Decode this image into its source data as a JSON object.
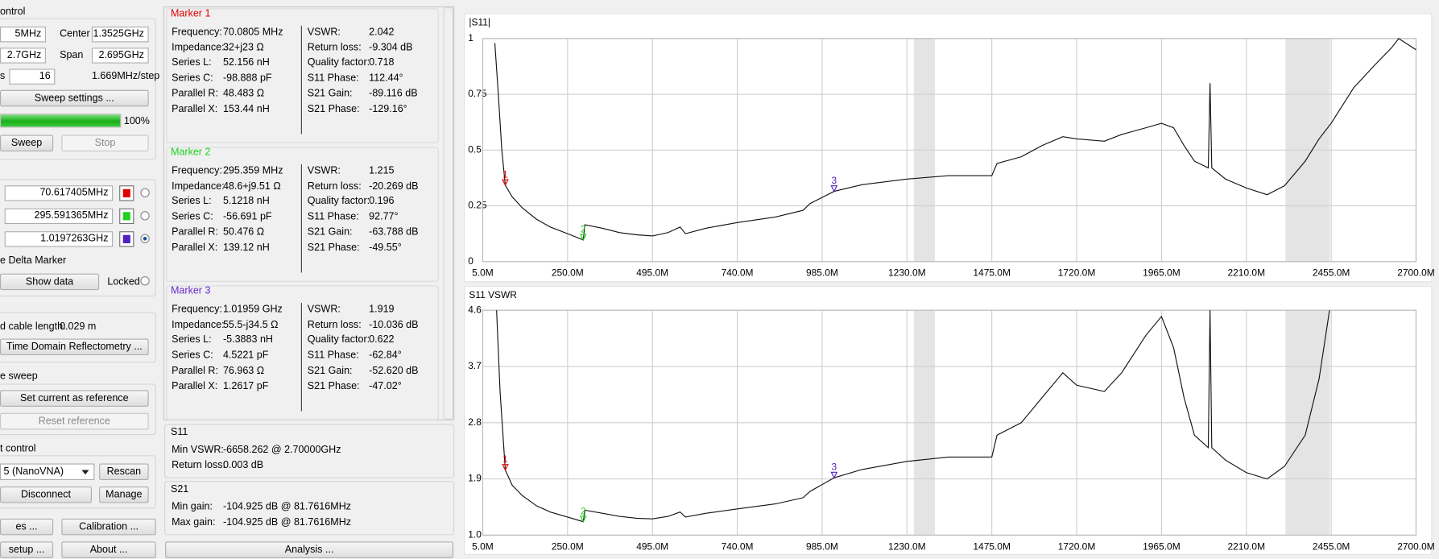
{
  "sweep_control": {
    "title": "ontrol",
    "start": "5MHz",
    "center_label": "Center",
    "center": "1.3525GHz",
    "stop": "2.7GHz",
    "span_label": "Span",
    "span": "2.695GHz",
    "segments_label": "s",
    "segments": "16",
    "step": "1.669MHz/step",
    "sweep_settings": "Sweep settings ...",
    "progress": 100,
    "progress_label": "100%",
    "sweep": "Sweep",
    "stop_button": "Stop"
  },
  "marker_control": {
    "markers": [
      {
        "value": "70.617405MHz",
        "color": "#e00000"
      },
      {
        "value": "295.591365MHz",
        "color": "#20d020"
      },
      {
        "value": "1.0197263GHz",
        "color": "#5020c0"
      }
    ],
    "delta": "e Delta Marker",
    "show_data": "Show data",
    "locked": "Locked"
  },
  "tdr": {
    "cable_length_label": "d cable length:",
    "cable_length": "0.029 m",
    "button": "Time Domain Reflectometry ..."
  },
  "reference": {
    "title": "e sweep",
    "set": "Set current as reference",
    "reset": "Reset reference"
  },
  "device": {
    "title": "t control",
    "device": "5 (NanoVNA)",
    "rescan": "Rescan",
    "disconnect": "Disconnect",
    "manage": "Manage"
  },
  "buttons": {
    "files": "es ...",
    "calibration": "Calibration ...",
    "setup": "setup ...",
    "about": "About ..."
  },
  "markers_info": [
    {
      "title": "Marker 1",
      "color": "#e00000",
      "left": [
        [
          "Frequency:",
          "70.0805 MHz"
        ],
        [
          "Impedance:",
          "32+j23 Ω"
        ],
        [
          "Series L:",
          "52.156 nH"
        ],
        [
          "Series C:",
          "-98.888 pF"
        ],
        [
          "Parallel R:",
          "48.483 Ω"
        ],
        [
          "Parallel X:",
          "153.44 nH"
        ]
      ],
      "right": [
        [
          "VSWR:",
          "2.042"
        ],
        [
          "Return loss:",
          "-9.304 dB"
        ],
        [
          "Quality factor:",
          "0.718"
        ],
        [
          "S11 Phase:",
          "112.44°"
        ],
        [
          "S21 Gain:",
          "-89.116 dB"
        ],
        [
          "S21 Phase:",
          "-129.16°"
        ]
      ]
    },
    {
      "title": "Marker 2",
      "color": "#20d020",
      "left": [
        [
          "Frequency:",
          "295.359 MHz"
        ],
        [
          "Impedance:",
          "48.6+j9.51 Ω"
        ],
        [
          "Series L:",
          "5.1218 nH"
        ],
        [
          "Series C:",
          "-56.691 pF"
        ],
        [
          "Parallel R:",
          "50.476 Ω"
        ],
        [
          "Parallel X:",
          "139.12 nH"
        ]
      ],
      "right": [
        [
          "VSWR:",
          "1.215"
        ],
        [
          "Return loss:",
          "-20.269 dB"
        ],
        [
          "Quality factor:",
          "0.196"
        ],
        [
          "S11 Phase:",
          "92.77°"
        ],
        [
          "S21 Gain:",
          "-63.788 dB"
        ],
        [
          "S21 Phase:",
          "-49.55°"
        ]
      ]
    },
    {
      "title": "Marker 3",
      "color": "#6a2ad0",
      "left": [
        [
          "Frequency:",
          "1.01959 GHz"
        ],
        [
          "Impedance:",
          "55.5-j34.5 Ω"
        ],
        [
          "Series L:",
          "-5.3883 nH"
        ],
        [
          "Series C:",
          "4.5221 pF"
        ],
        [
          "Parallel R:",
          "76.963 Ω"
        ],
        [
          "Parallel X:",
          "1.2617 pF"
        ]
      ],
      "right": [
        [
          "VSWR:",
          "1.919"
        ],
        [
          "Return loss:",
          "-10.036 dB"
        ],
        [
          "Quality factor:",
          "0.622"
        ],
        [
          "S11 Phase:",
          "-62.84°"
        ],
        [
          "S21 Gain:",
          "-52.620 dB"
        ],
        [
          "S21 Phase:",
          "-47.02°"
        ]
      ]
    }
  ],
  "s11": {
    "title": "S11",
    "rows": [
      [
        "Min VSWR:",
        "-6658.262 @ 2.70000GHz"
      ],
      [
        "Return loss:",
        "0.003 dB"
      ]
    ]
  },
  "s21": {
    "title": "S21",
    "rows": [
      [
        "Min gain:",
        "-104.925 dB @ 81.7616MHz"
      ],
      [
        "Max gain:",
        "-104.925 dB @ 81.7616MHz"
      ]
    ]
  },
  "analysis": "Analysis ...",
  "chart_data": [
    {
      "type": "line",
      "title": "|S11|",
      "color": "#111111",
      "grid": true,
      "x": [
        40,
        50,
        60,
        70.0805,
        90,
        120,
        160,
        200,
        250,
        295.359,
        300,
        350,
        400,
        450,
        495,
        540,
        575,
        590,
        650,
        740,
        850,
        930,
        950,
        1019.59,
        1100,
        1230,
        1350,
        1475,
        1490,
        1560,
        1620,
        1680,
        1720,
        1800,
        1850,
        1920,
        1965,
        2000,
        2030,
        2060,
        2100,
        2105,
        2110,
        2150,
        2210,
        2270,
        2320,
        2380,
        2420,
        2455,
        2520,
        2580,
        2630,
        2650,
        2700
      ],
      "values": [
        0.98,
        0.75,
        0.5,
        0.3425,
        0.29,
        0.24,
        0.19,
        0.155,
        0.125,
        0.097,
        0.165,
        0.15,
        0.13,
        0.12,
        0.115,
        0.13,
        0.155,
        0.125,
        0.15,
        0.175,
        0.2,
        0.23,
        0.26,
        0.315,
        0.345,
        0.37,
        0.385,
        0.385,
        0.44,
        0.47,
        0.52,
        0.56,
        0.55,
        0.54,
        0.57,
        0.6,
        0.62,
        0.6,
        0.52,
        0.45,
        0.42,
        0.8,
        0.42,
        0.37,
        0.33,
        0.3,
        0.34,
        0.45,
        0.55,
        0.62,
        0.78,
        0.88,
        0.96,
        1,
        0.95
      ],
      "xlim": [
        5,
        2700
      ],
      "ylim": [
        0,
        1
      ],
      "xticks": [
        {
          "value": 5,
          "label": "5.0M"
        },
        {
          "value": 250,
          "label": "250.0M"
        },
        {
          "value": 495,
          "label": "495.0M"
        },
        {
          "value": 740,
          "label": "740.0M"
        },
        {
          "value": 985,
          "label": "985.0M"
        },
        {
          "value": 1230,
          "label": "1230.0M"
        },
        {
          "value": 1475,
          "label": "1475.0M"
        },
        {
          "value": 1720,
          "label": "1720.0M"
        },
        {
          "value": 1965,
          "label": "1965.0M"
        },
        {
          "value": 2210,
          "label": "2210.0M"
        },
        {
          "value": 2455,
          "label": "2455.0M"
        },
        {
          "value": 2700,
          "label": "2700.0M"
        }
      ],
      "yticks": [
        0,
        0.25,
        0.5,
        0.75,
        1
      ],
      "shaded": [
        [
          1250,
          1311
        ],
        [
          2323,
          2451
        ]
      ],
      "markers": [
        {
          "label": "1",
          "x": 70.0805,
          "y": 0.3425,
          "color": "#e00000"
        },
        {
          "label": "2",
          "x": 295.359,
          "y": 0.097,
          "color": "#20d020"
        },
        {
          "label": "3",
          "x": 1019.59,
          "y": 0.315,
          "color": "#5020c0"
        }
      ]
    },
    {
      "type": "line",
      "title": "S11 VSWR",
      "color": "#111111",
      "grid": true,
      "x": [
        45,
        55,
        70.0805,
        90,
        120,
        160,
        200,
        250,
        295.359,
        300,
        350,
        400,
        450,
        495,
        540,
        575,
        590,
        650,
        740,
        850,
        930,
        950,
        1019.59,
        1100,
        1230,
        1350,
        1475,
        1490,
        1560,
        1620,
        1680,
        1720,
        1800,
        1850,
        1920,
        1965,
        2000,
        2030,
        2060,
        2100,
        2105,
        2110,
        2150,
        2210,
        2270,
        2320,
        2380,
        2420,
        2450
      ],
      "values": [
        4.6,
        3.3,
        2.042,
        1.8,
        1.63,
        1.47,
        1.37,
        1.29,
        1.215,
        1.4,
        1.35,
        1.3,
        1.27,
        1.26,
        1.3,
        1.37,
        1.29,
        1.35,
        1.42,
        1.5,
        1.6,
        1.7,
        1.919,
        2.05,
        2.18,
        2.25,
        2.25,
        2.6,
        2.8,
        3.2,
        3.6,
        3.4,
        3.3,
        3.6,
        4.2,
        4.5,
        4,
        3.2,
        2.6,
        2.4,
        4.6,
        2.4,
        2.2,
        2,
        1.9,
        2.1,
        2.6,
        3.5,
        4.6
      ],
      "xlim": [
        5,
        2700
      ],
      "ylim": [
        1,
        4.6
      ],
      "xticks": [
        {
          "value": 5,
          "label": "5.0M"
        },
        {
          "value": 250,
          "label": "250.0M"
        },
        {
          "value": 495,
          "label": "495.0M"
        },
        {
          "value": 740,
          "label": "740.0M"
        },
        {
          "value": 985,
          "label": "985.0M"
        },
        {
          "value": 1230,
          "label": "1230.0M"
        },
        {
          "value": 1475,
          "label": "1475.0M"
        },
        {
          "value": 1720,
          "label": "1720.0M"
        },
        {
          "value": 1965,
          "label": "1965.0M"
        },
        {
          "value": 2210,
          "label": "2210.0M"
        },
        {
          "value": 2455,
          "label": "2455.0M"
        },
        {
          "value": 2700,
          "label": "2700.0M"
        }
      ],
      "yticks": [
        {
          "value": 1,
          "label": "1.0"
        },
        1.9,
        2.8,
        3.7,
        4.6
      ],
      "shaded": [
        [
          1250,
          1311
        ],
        [
          2323,
          2451
        ]
      ],
      "markers": [
        {
          "label": "1",
          "x": 70.0805,
          "y": 2.042,
          "color": "#e00000"
        },
        {
          "label": "2",
          "x": 295.359,
          "y": 1.215,
          "color": "#20d020"
        },
        {
          "label": "3",
          "x": 1019.59,
          "y": 1.919,
          "color": "#5020c0"
        }
      ]
    }
  ]
}
